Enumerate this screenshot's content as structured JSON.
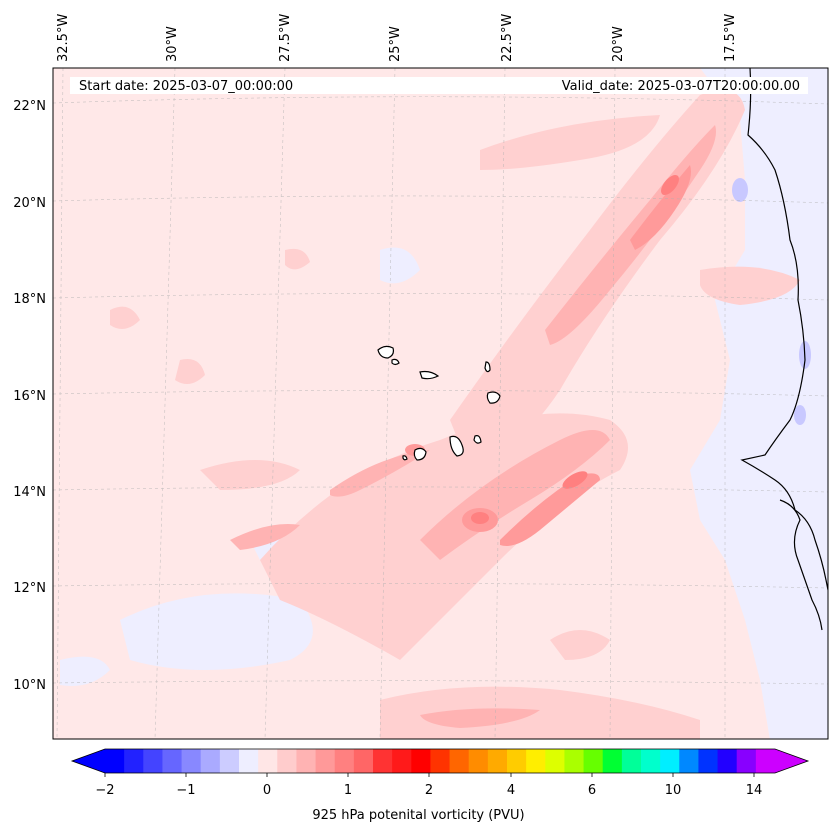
{
  "header": {
    "start_date": "Start date: 2025-03-07_00:00:00",
    "valid_date": "Valid_date: 2025-03-07T20:00:00.00"
  },
  "axes": {
    "lon_labels": [
      "32.5°W",
      "30°W",
      "27.5°W",
      "25°W",
      "22.5°W",
      "20°W",
      "17.5°W"
    ],
    "lat_labels": [
      "22°N",
      "20°N",
      "18°N",
      "16°N",
      "14°N",
      "12°N",
      "10°N"
    ]
  },
  "colorbar": {
    "label": "925 hPa potenital vorticity (PVU)",
    "tick_labels": [
      "−2",
      "−1",
      "0",
      "1",
      "2",
      "4",
      "6",
      "10",
      "14"
    ],
    "colors": [
      "#0000ff",
      "#2222ff",
      "#4444ff",
      "#6666ff",
      "#8888ff",
      "#aaaaff",
      "#ccccff",
      "#eeeeff",
      "#ffe6e6",
      "#ffcccc",
      "#ffb3b3",
      "#ff9999",
      "#ff8080",
      "#ff6666",
      "#ff3333",
      "#ff1a1a",
      "#ff0000",
      "#ff3300",
      "#ff6600",
      "#ff8c00",
      "#ffaa00",
      "#ffcc00",
      "#ffee00",
      "#ddff00",
      "#aaff00",
      "#66ff00",
      "#00ff33",
      "#00ff99",
      "#00ffcc",
      "#00eeff",
      "#0088ff",
      "#0033ff",
      "#2200ff",
      "#8800ff",
      "#cc00ff"
    ]
  },
  "field_colors": {
    "background": "#ffe8e8",
    "light_pink": "#ffd0d0",
    "pink": "#ffb3b3",
    "mid_red": "#ff9a9a",
    "strong_red": "#ff8080",
    "light_blue": "#eeeeff",
    "blue": "#c8c8ff",
    "mid_blue": "#a9a9ff"
  }
}
